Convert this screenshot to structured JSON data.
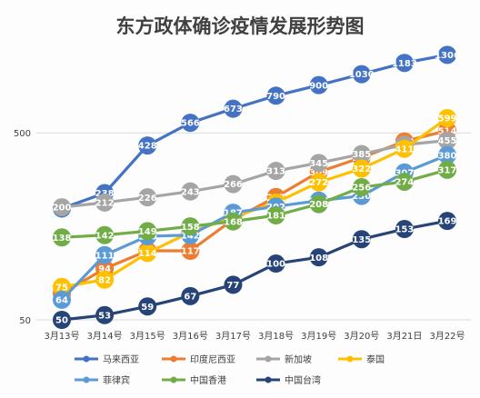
{
  "chart_data": {
    "type": "line",
    "title": "东方政体确诊疫情发展形势图",
    "xlabel": "",
    "ylabel": "",
    "y_scale": "log",
    "ylim": [
      50,
      1500
    ],
    "y_ticks": [
      {
        "value": 50,
        "label": "50"
      },
      {
        "value": 500,
        "label": "500"
      }
    ],
    "grid": true,
    "legend_position": "bottom",
    "categories": [
      "3月13号",
      "3月14号",
      "3月15号",
      "3月16号",
      "3月17号",
      "3月18号",
      "3月19号",
      "3月20号",
      "3月21日",
      "3月22号"
    ],
    "series": [
      {
        "name": "马来西亚",
        "color": "#4472c4",
        "values": [
          197,
          238,
          428,
          566,
          673,
          790,
          900,
          1030,
          1183,
          1306
        ]
      },
      {
        "name": "印度尼西亚",
        "color": "#ed7d31",
        "values": [
          69,
          94,
          117,
          117,
          172,
          227,
          309,
          369,
          450,
          514
        ]
      },
      {
        "name": "新加坡",
        "color": "#a5a5a5",
        "values": [
          200,
          212,
          226,
          243,
          266,
          313,
          345,
          385,
          432,
          455
        ]
      },
      {
        "name": "泰国",
        "color": "#ffc000",
        "values": [
          75,
          82,
          114,
          147,
          177,
          212,
          272,
          322,
          411,
          599
        ]
      },
      {
        "name": "菲律宾",
        "color": "#5b9bd5",
        "values": [
          64,
          111,
          140,
          142,
          187,
          202,
          217,
          230,
          307,
          380
        ]
      },
      {
        "name": "中国香港",
        "color": "#70ad47",
        "values": [
          138,
          142,
          149,
          158,
          168,
          181,
          208,
          256,
          274,
          317
        ]
      },
      {
        "name": "中国台湾",
        "color": "#264478",
        "values": [
          50,
          53,
          59,
          67,
          77,
          100,
          108,
          135,
          153,
          169
        ]
      }
    ]
  }
}
